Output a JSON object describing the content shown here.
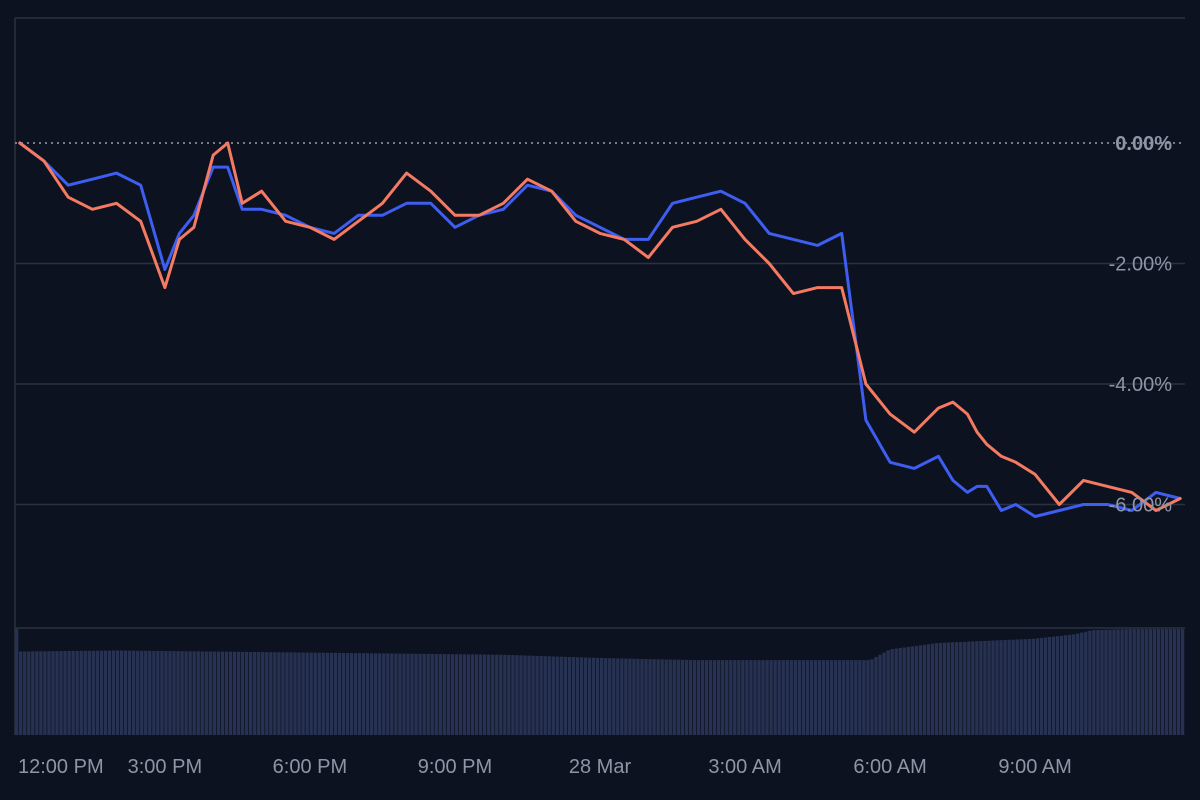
{
  "chart_data": {
    "type": "line",
    "x_ticks": [
      "12:00 PM",
      "3:00 PM",
      "6:00 PM",
      "9:00 PM",
      "28 Mar",
      "3:00 AM",
      "6:00 AM",
      "9:00 AM"
    ],
    "y_ticks": [
      "0.00%",
      "-2.00%",
      "-4.00%",
      "-6.00%"
    ],
    "y_tick_values": [
      0,
      -2,
      -4,
      -6
    ],
    "ylim": [
      -8,
      2
    ],
    "xlim_hours": [
      11.9,
      36.1
    ],
    "baseline": 0,
    "colors": {
      "background": "#0d1220",
      "grid": "#2a3140",
      "baseline": "#9aa0aa",
      "tick_text": "#8d96a6",
      "series_a": "#3d5ef0",
      "series_b": "#f47a62",
      "volume": "#273253"
    },
    "series": [
      {
        "color": "#3d5ef0",
        "x_hours": [
          12.0,
          12.5,
          13.0,
          13.5,
          14.0,
          14.5,
          15.0,
          15.3,
          15.6,
          16.0,
          16.3,
          16.6,
          17.0,
          17.5,
          18.0,
          18.5,
          19.0,
          19.5,
          20.0,
          20.5,
          21.0,
          21.5,
          22.0,
          22.5,
          23.0,
          23.5,
          24.0,
          24.5,
          25.0,
          25.5,
          26.0,
          26.5,
          27.0,
          27.5,
          28.0,
          28.5,
          29.0,
          29.5,
          30.0,
          30.5,
          31.0,
          31.3,
          31.6,
          31.8,
          32.0,
          32.3,
          32.6,
          33.0,
          33.5,
          34.0,
          34.5,
          35.0,
          35.5,
          36.0
        ],
        "values": [
          0.0,
          -0.3,
          -0.7,
          -0.6,
          -0.5,
          -0.7,
          -2.1,
          -1.5,
          -1.2,
          -0.4,
          -0.4,
          -1.1,
          -1.1,
          -1.2,
          -1.4,
          -1.5,
          -1.2,
          -1.2,
          -1.0,
          -1.0,
          -1.4,
          -1.2,
          -1.1,
          -0.7,
          -0.8,
          -1.2,
          -1.4,
          -1.6,
          -1.6,
          -1.0,
          -0.9,
          -0.8,
          -1.0,
          -1.5,
          -1.6,
          -1.7,
          -1.5,
          -4.6,
          -5.3,
          -5.4,
          -5.2,
          -5.6,
          -5.8,
          -5.7,
          -5.7,
          -6.1,
          -6.0,
          -6.2,
          -6.1,
          -6.0,
          -6.0,
          -6.1,
          -5.8,
          -5.9
        ]
      },
      {
        "color": "#f47a62",
        "x_hours": [
          12.0,
          12.5,
          13.0,
          13.5,
          14.0,
          14.5,
          15.0,
          15.3,
          15.6,
          16.0,
          16.3,
          16.6,
          17.0,
          17.5,
          18.0,
          18.5,
          19.0,
          19.5,
          20.0,
          20.5,
          21.0,
          21.5,
          22.0,
          22.5,
          23.0,
          23.5,
          24.0,
          24.5,
          25.0,
          25.5,
          26.0,
          26.5,
          27.0,
          27.5,
          28.0,
          28.5,
          29.0,
          29.5,
          30.0,
          30.5,
          31.0,
          31.3,
          31.6,
          31.8,
          32.0,
          32.3,
          32.6,
          33.0,
          33.5,
          34.0,
          34.5,
          35.0,
          35.5,
          36.0
        ],
        "values": [
          0.0,
          -0.3,
          -0.9,
          -1.1,
          -1.0,
          -1.3,
          -2.4,
          -1.6,
          -1.4,
          -0.2,
          0.0,
          -1.0,
          -0.8,
          -1.3,
          -1.4,
          -1.6,
          -1.3,
          -1.0,
          -0.5,
          -0.8,
          -1.2,
          -1.2,
          -1.0,
          -0.6,
          -0.8,
          -1.3,
          -1.5,
          -1.6,
          -1.9,
          -1.4,
          -1.3,
          -1.1,
          -1.6,
          -2.0,
          -2.5,
          -2.4,
          -2.4,
          -4.0,
          -4.5,
          -4.8,
          -4.4,
          -4.3,
          -4.5,
          -4.8,
          -5.0,
          -5.2,
          -5.3,
          -5.5,
          -6.0,
          -5.6,
          -5.7,
          -5.8,
          -6.1,
          -5.9
        ]
      }
    ],
    "volume": {
      "x_hours": [
        12.0,
        14.0,
        16.0,
        18.0,
        20.0,
        22.0,
        24.0,
        26.0,
        28.0,
        29.6,
        30.0,
        31.0,
        32.0,
        33.0,
        33.8,
        34.2,
        35.0,
        36.0
      ],
      "values": [
        78,
        79,
        78,
        77,
        76,
        75,
        72,
        70,
        70,
        70,
        80,
        86,
        88,
        90,
        94,
        98,
        99,
        99
      ]
    }
  }
}
